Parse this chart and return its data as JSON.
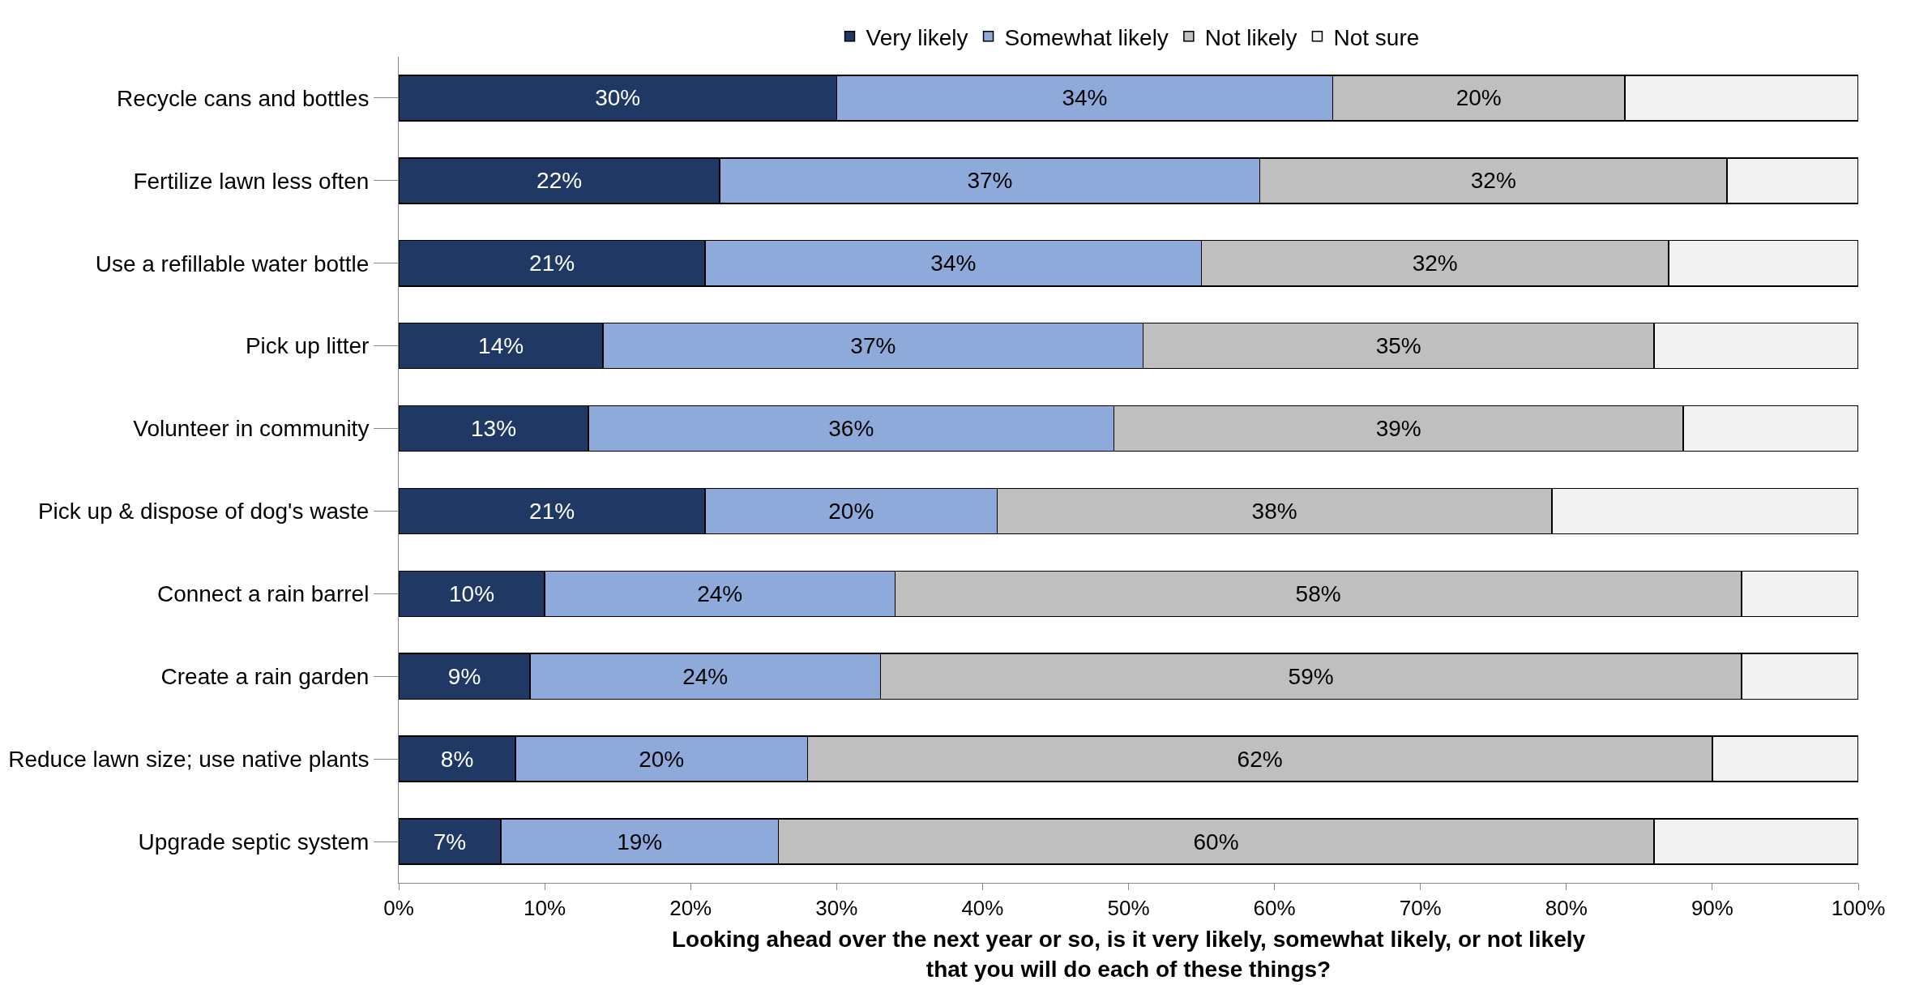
{
  "chart_data": {
    "type": "bar",
    "orientation": "horizontal",
    "stacked": true,
    "categories": [
      "Recycle cans and bottles",
      "Fertilize lawn less often",
      "Use a refillable water bottle",
      "Pick up litter",
      "Volunteer in community",
      "Pick up & dispose of dog's waste",
      "Connect a rain barrel",
      "Create a rain garden",
      "Reduce lawn size; use native plants",
      "Upgrade septic system"
    ],
    "series": [
      {
        "name": "Very likely",
        "color": "#203864",
        "values": [
          30,
          22,
          21,
          14,
          13,
          21,
          10,
          9,
          8,
          7
        ],
        "value_labels": [
          "30%",
          "22%",
          "21%",
          "14%",
          "13%",
          "21%",
          "10%",
          "9%",
          "8%",
          "7%"
        ]
      },
      {
        "name": "Somewhat likely",
        "color": "#8eaadb",
        "values": [
          34,
          37,
          34,
          37,
          36,
          20,
          24,
          24,
          20,
          19
        ],
        "value_labels": [
          "34%",
          "37%",
          "34%",
          "37%",
          "36%",
          "20%",
          "24%",
          "24%",
          "20%",
          "19%"
        ]
      },
      {
        "name": "Not likely",
        "color": "#bfbfbf",
        "values": [
          20,
          32,
          32,
          35,
          39,
          38,
          58,
          59,
          62,
          60
        ],
        "value_labels": [
          "20%",
          "32%",
          "32%",
          "35%",
          "39%",
          "38%",
          "58%",
          "59%",
          "62%",
          "60%"
        ]
      },
      {
        "name": "Not sure",
        "color": "#f2f2f2",
        "values": [
          16,
          9,
          13,
          14,
          12,
          21,
          8,
          8,
          10,
          14
        ]
      }
    ],
    "xlim": [
      0,
      100
    ],
    "xticks": [
      {
        "value": 0,
        "label": "0%"
      },
      {
        "value": 10,
        "label": "10%"
      },
      {
        "value": 20,
        "label": "20%"
      },
      {
        "value": 30,
        "label": "30%"
      },
      {
        "value": 40,
        "label": "40%"
      },
      {
        "value": 50,
        "label": "50%"
      },
      {
        "value": 60,
        "label": "60%"
      },
      {
        "value": 70,
        "label": "70%"
      },
      {
        "value": 80,
        "label": "80%"
      },
      {
        "value": 90,
        "label": "90%"
      },
      {
        "value": 100,
        "label": "100%"
      }
    ],
    "xlabel": "Looking ahead over the next year or so, is it very likely, somewhat likely, or not likely\nthat you will do each of these things?",
    "legend": "top",
    "grid": false
  }
}
